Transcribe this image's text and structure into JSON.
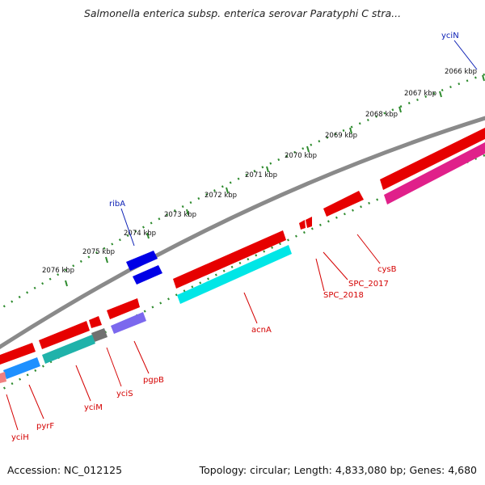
{
  "title": "Salmonella enterica subsp. enterica serovar Paratyphi C stra...",
  "footer": {
    "accession": "Accession: NC_012125",
    "summary": "Topology: circular; Length: 4,833,080 bp; Genes: 4,680"
  },
  "colors": {
    "backbone": "#8a8a8a",
    "ruler": "#2e8b2e",
    "label_forward": "#0a1eb4",
    "label_reverse": "#d40000"
  },
  "kbp_ticks": [
    "2066 kbp",
    "2067 kbp",
    "2068 kbp",
    "2069 kbp",
    "2070 kbp",
    "2071 kbp",
    "2072 kbp",
    "2073 kbp",
    "2074 kbp",
    "2075 kbp",
    "2076 kbp"
  ],
  "labels": {
    "yciN": "yciN",
    "ribA": "ribA",
    "cysB": "cysB",
    "SPC_2017": "SPC_2017",
    "SPC_2018": "SPC_2018",
    "acnA": "acnA",
    "pgpB": "pgpB",
    "yciS": "yciS",
    "yciM": "yciM",
    "pyrF": "pyrF",
    "yciH": "yciH"
  }
}
